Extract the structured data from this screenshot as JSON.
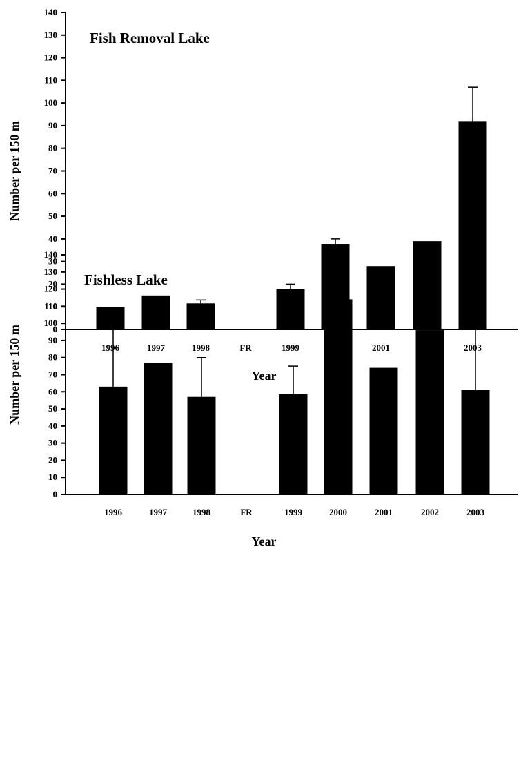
{
  "chart_data": [
    {
      "type": "bar",
      "title": "Fish Removal Lake",
      "xlabel": "Year",
      "ylabel": "Number per 150 m",
      "ylim": [
        0,
        140
      ],
      "yticks": [
        0,
        10,
        20,
        30,
        40,
        50,
        60,
        70,
        80,
        90,
        100,
        110,
        120,
        130,
        140
      ],
      "categories": [
        "1996",
        "1997",
        "1998",
        "FR",
        "1999",
        "2000",
        "2001",
        "2002",
        "2003"
      ],
      "values": [
        10,
        15,
        11.5,
        null,
        18,
        37.5,
        28,
        39,
        92
      ],
      "error_upper": [
        10,
        15,
        13,
        null,
        20,
        40,
        28,
        39,
        107
      ],
      "grid": false
    },
    {
      "type": "bar",
      "title": "Fishless Lake",
      "xlabel": "Year",
      "ylabel": "Number per 150 m",
      "ylim": [
        0,
        140
      ],
      "yticks": [
        0,
        10,
        20,
        30,
        40,
        50,
        60,
        70,
        80,
        90,
        100,
        110,
        120,
        130,
        140
      ],
      "categories": [
        "1996",
        "1997",
        "1998",
        "FR",
        "1999",
        "2000",
        "2001",
        "2002",
        "2003"
      ],
      "values": [
        63,
        77,
        57,
        null,
        58.5,
        114,
        74,
        96,
        61
      ],
      "error_upper": [
        100,
        77,
        80,
        null,
        75,
        116,
        74,
        96,
        111
      ],
      "grid": false
    }
  ]
}
